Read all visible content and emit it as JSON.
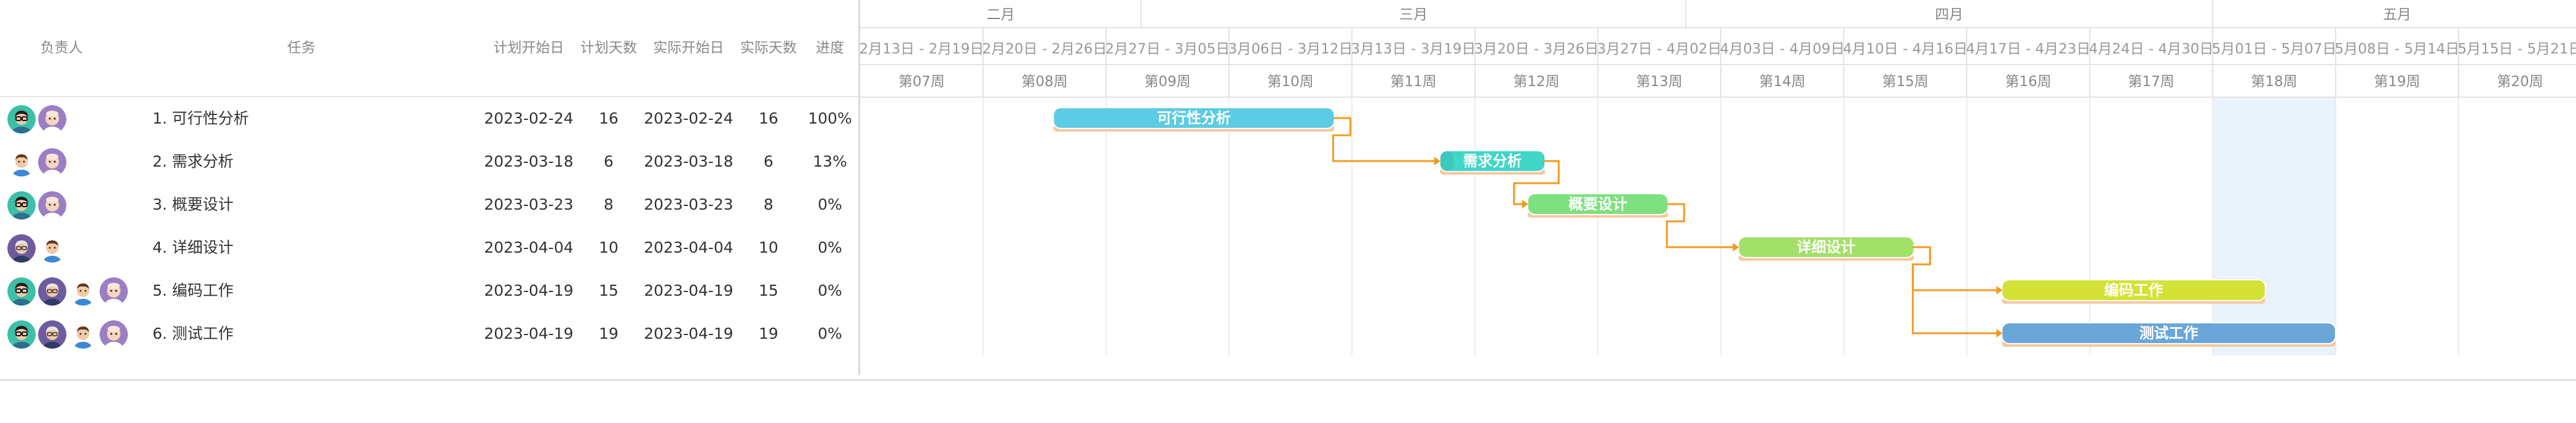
{
  "columns": {
    "owner": "负责人",
    "task": "任务",
    "plan_start": "计划开始日",
    "plan_days": "计划天数",
    "actual_start": "实际开始日",
    "actual_days": "实际天数",
    "progress": "进度"
  },
  "tasks": [
    {
      "name": "1. 可行性分析",
      "bar_label": "可行性分析",
      "plan_start": "2023-02-24",
      "plan_days": "16",
      "actual_start": "2023-02-24",
      "actual_days": "16",
      "progress": "100%",
      "progress_value": 100,
      "color": "#5ccbe3",
      "avatars": [
        "avatar-green-glasses",
        "avatar-purple-bald"
      ]
    },
    {
      "name": "2. 需求分析",
      "bar_label": "需求分析",
      "plan_start": "2023-03-18",
      "plan_days": "6",
      "actual_start": "2023-03-18",
      "actual_days": "6",
      "progress": "13%",
      "progress_value": 13,
      "color": "#40d6c8",
      "avatars": [
        "avatar-white-man",
        "avatar-purple-bald"
      ]
    },
    {
      "name": "3. 概要设计",
      "bar_label": "概要设计",
      "plan_start": "2023-03-23",
      "plan_days": "8",
      "actual_start": "2023-03-23",
      "actual_days": "8",
      "progress": "0%",
      "progress_value": 0,
      "color": "#7ee07f",
      "avatars": [
        "avatar-green-glasses",
        "avatar-purple-bald"
      ]
    },
    {
      "name": "4. 详细设计",
      "bar_label": "详细设计",
      "plan_start": "2023-04-04",
      "plan_days": "10",
      "actual_start": "2023-04-04",
      "actual_days": "10",
      "progress": "0%",
      "progress_value": 0,
      "color": "#a3e06a",
      "avatars": [
        "avatar-purple-elder",
        "avatar-white-man"
      ]
    },
    {
      "name": "5. 编码工作",
      "bar_label": "编码工作",
      "plan_start": "2023-04-19",
      "plan_days": "15",
      "actual_start": "2023-04-19",
      "actual_days": "15",
      "progress": "0%",
      "progress_value": 0,
      "color": "#d4e236",
      "avatars": [
        "avatar-green-glasses",
        "avatar-purple-elder",
        "avatar-white-man",
        "avatar-purple-bald"
      ]
    },
    {
      "name": "6. 测试工作",
      "bar_label": "测试工作",
      "plan_start": "2023-04-19",
      "plan_days": "19",
      "actual_start": "2023-04-19",
      "actual_days": "19",
      "progress": "0%",
      "progress_value": 0,
      "color": "#6aa6d8",
      "avatars": [
        "avatar-green-glasses",
        "avatar-purple-elder",
        "avatar-white-man",
        "avatar-purple-bald"
      ]
    }
  ],
  "timeline": {
    "months": [
      "二月",
      "三月",
      "四月",
      "五月"
    ],
    "week_ranges": [
      "2月13日 - 2月19日",
      "2月20日 - 2月26日",
      "2月27日 - 3月05日",
      "3月06日 - 3月12日",
      "3月13日 - 3月19日",
      "3月20日 - 3月26日",
      "3月27日 - 4月02日",
      "4月03日 - 4月09日",
      "4月10日 - 4月16日",
      "4月17日 - 4月23日",
      "4月24日 - 4月30日",
      "5月01日 - 5月07日",
      "5月08日 - 5月14日",
      "5月15日 - 5月21日"
    ],
    "week_labels": [
      "第07周",
      "第08周",
      "第09周",
      "第10周",
      "第11周",
      "第12周",
      "第13周",
      "第14周",
      "第15周",
      "第16周",
      "第17周",
      "第18周",
      "第19周",
      "第20周"
    ],
    "highlight_week": "第18周",
    "colors": {
      "dependency": "#f29a1f",
      "actual_bar": "#f5c9a0",
      "highlight": "#eaf3fc",
      "grid": "#ececec"
    }
  }
}
